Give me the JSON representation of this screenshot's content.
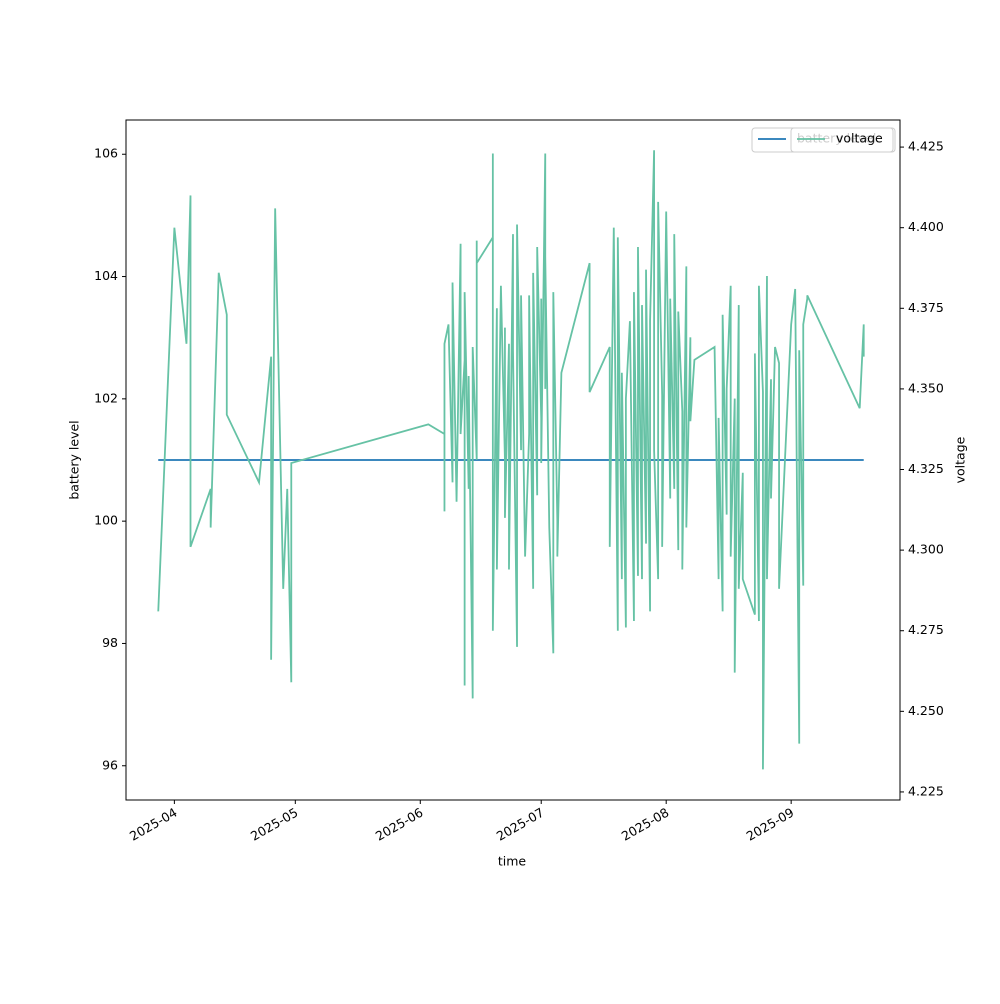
{
  "chart_data": {
    "type": "line",
    "xlabel": "time",
    "ylabel": "battery level",
    "y2label": "voltage",
    "xlim": [
      "2025-03-20",
      "2025-09-28"
    ],
    "xticks": [
      {
        "value": "2025-04-01",
        "label": "2025-04"
      },
      {
        "value": "2025-05-01",
        "label": "2025-05"
      },
      {
        "value": "2025-06-01",
        "label": "2025-06"
      },
      {
        "value": "2025-07-01",
        "label": "2025-07"
      },
      {
        "value": "2025-08-01",
        "label": "2025-08"
      },
      {
        "value": "2025-09-01",
        "label": "2025-09"
      }
    ],
    "ylim": [
      95.44,
      106.56
    ],
    "yticks": [
      96,
      98,
      100,
      102,
      104,
      106
    ],
    "y2lim": [
      4.2225,
      4.4334
    ],
    "y2ticks": [
      4.225,
      {
        "value": 4.25,
        "label": "4.250"
      },
      4.275,
      {
        "value": 4.3,
        "label": "4.300"
      },
      4.325,
      {
        "value": 4.35,
        "label": "4.350"
      },
      4.375,
      {
        "value": 4.4,
        "label": "4.400"
      },
      4.425
    ],
    "legend": "upper right",
    "series": [
      {
        "name": "battery level",
        "color": "#1f77b4",
        "x": [
          "2025-03-28",
          "2025-09-19"
        ],
        "values": [
          101,
          101
        ]
      },
      {
        "name": "voltage",
        "color": "#66c2a5",
        "axis": "y2",
        "x": [
          "2025-03-28",
          "2025-04-01",
          "2025-04-04",
          "2025-04-05",
          "2025-04-05",
          "2025-04-10",
          "2025-04-10",
          "2025-04-12",
          "2025-04-14",
          "2025-04-14",
          "2025-04-22",
          "2025-04-25",
          "2025-04-25",
          "2025-04-26",
          "2025-04-28",
          "2025-04-29",
          "2025-04-30",
          "2025-04-30",
          "2025-06-03",
          "2025-06-07",
          "2025-06-07",
          "2025-06-07",
          "2025-06-08",
          "2025-06-09",
          "2025-06-09",
          "2025-06-10",
          "2025-06-11",
          "2025-06-11",
          "2025-06-12",
          "2025-06-12",
          "2025-06-12",
          "2025-06-13",
          "2025-06-13",
          "2025-06-14",
          "2025-06-14",
          "2025-06-15",
          "2025-06-15",
          "2025-06-15",
          "2025-06-19",
          "2025-06-19",
          "2025-06-19",
          "2025-06-20",
          "2025-06-20",
          "2025-06-21",
          "2025-06-22",
          "2025-06-22",
          "2025-06-22",
          "2025-06-23",
          "2025-06-23",
          "2025-06-24",
          "2025-06-24",
          "2025-06-25",
          "2025-06-25",
          "2025-06-26",
          "2025-06-26",
          "2025-06-27",
          "2025-06-28",
          "2025-06-28",
          "2025-06-29",
          "2025-06-29",
          "2025-06-30",
          "2025-06-30",
          "2025-07-01",
          "2025-07-01",
          "2025-07-01",
          "2025-07-02",
          "2025-07-02",
          "2025-07-02",
          "2025-07-03",
          "2025-07-04",
          "2025-07-04",
          "2025-07-05",
          "2025-07-05",
          "2025-07-06",
          "2025-07-13",
          "2025-07-13",
          "2025-07-18",
          "2025-07-18",
          "2025-07-19",
          "2025-07-20",
          "2025-07-20",
          "2025-07-21",
          "2025-07-21",
          "2025-07-22",
          "2025-07-22",
          "2025-07-23",
          "2025-07-24",
          "2025-07-24",
          "2025-07-25",
          "2025-07-25",
          "2025-07-26",
          "2025-07-26",
          "2025-07-27",
          "2025-07-27",
          "2025-07-28",
          "2025-07-28",
          "2025-07-29",
          "2025-07-29",
          "2025-07-30",
          "2025-07-30",
          "2025-07-31",
          "2025-07-31",
          "2025-08-01",
          "2025-08-02",
          "2025-08-02",
          "2025-08-03",
          "2025-08-03",
          "2025-08-04",
          "2025-08-04",
          "2025-08-05",
          "2025-08-05",
          "2025-08-06",
          "2025-08-06",
          "2025-08-07",
          "2025-08-07",
          "2025-08-08",
          "2025-08-13",
          "2025-08-14",
          "2025-08-14",
          "2025-08-15",
          "2025-08-15",
          "2025-08-16",
          "2025-08-16",
          "2025-08-17",
          "2025-08-17",
          "2025-08-18",
          "2025-08-18",
          "2025-08-19",
          "2025-08-19",
          "2025-08-20",
          "2025-08-20",
          "2025-08-23",
          "2025-08-23",
          "2025-08-24",
          "2025-08-24",
          "2025-08-25",
          "2025-08-25",
          "2025-08-26",
          "2025-08-26",
          "2025-08-27",
          "2025-08-27",
          "2025-08-28",
          "2025-08-29",
          "2025-08-29",
          "2025-09-01",
          "2025-09-02",
          "2025-09-03",
          "2025-09-03",
          "2025-09-04",
          "2025-09-04",
          "2025-09-05",
          "2025-09-05",
          "2025-09-18",
          "2025-09-19",
          "2025-09-19"
        ],
        "values": [
          4.281,
          4.4,
          4.364,
          4.41,
          4.301,
          4.319,
          4.307,
          4.386,
          4.373,
          4.342,
          4.321,
          4.36,
          4.266,
          4.406,
          4.288,
          4.319,
          4.259,
          4.327,
          4.339,
          4.336,
          4.312,
          4.364,
          4.37,
          4.321,
          4.383,
          4.315,
          4.395,
          4.336,
          4.359,
          4.258,
          4.38,
          4.319,
          4.354,
          4.254,
          4.363,
          4.328,
          4.396,
          4.389,
          4.397,
          4.423,
          4.275,
          4.375,
          4.294,
          4.382,
          4.328,
          4.369,
          4.31,
          4.364,
          4.294,
          4.398,
          4.362,
          4.27,
          4.401,
          4.331,
          4.379,
          4.298,
          4.336,
          4.379,
          4.288,
          4.386,
          4.317,
          4.394,
          4.341,
          4.378,
          4.327,
          4.423,
          4.35,
          4.391,
          4.307,
          4.268,
          4.38,
          4.309,
          4.298,
          4.355,
          4.389,
          4.349,
          4.363,
          4.301,
          4.4,
          4.275,
          4.397,
          4.291,
          4.355,
          4.276,
          4.347,
          4.371,
          4.278,
          4.38,
          4.292,
          4.394,
          4.291,
          4.376,
          4.302,
          4.387,
          4.281,
          4.371,
          4.424,
          4.331,
          4.291,
          4.408,
          4.348,
          4.301,
          4.405,
          4.316,
          4.378,
          4.319,
          4.398,
          4.3,
          4.374,
          4.343,
          4.294,
          4.388,
          4.307,
          4.366,
          4.34,
          4.359,
          4.363,
          4.291,
          4.341,
          4.281,
          4.373,
          4.311,
          4.35,
          4.382,
          4.298,
          4.347,
          4.262,
          4.376,
          4.288,
          4.324,
          4.291,
          4.28,
          4.361,
          4.278,
          4.382,
          4.349,
          4.232,
          4.385,
          4.291,
          4.353,
          4.316,
          4.363,
          4.358,
          4.288,
          4.37,
          4.381,
          4.24,
          4.362,
          4.289,
          4.37,
          4.378,
          4.379,
          4.344,
          4.37,
          4.36
        ]
      }
    ]
  }
}
